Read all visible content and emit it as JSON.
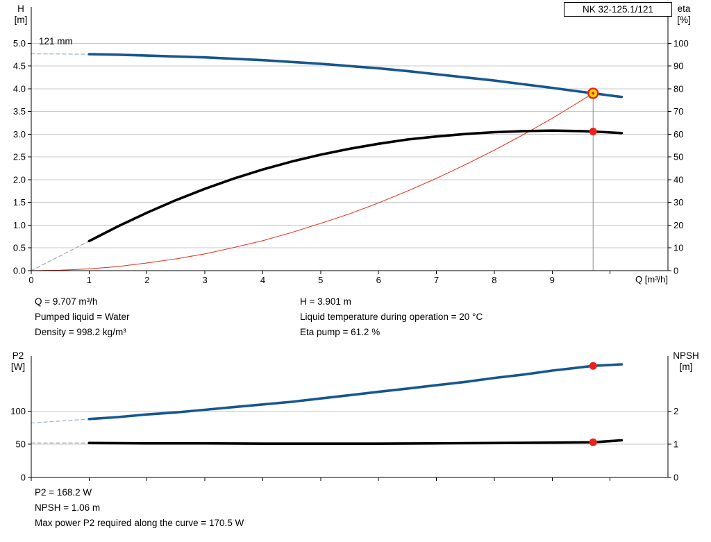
{
  "chart_data": [
    {
      "type": "line",
      "title": "NK 32-125.1/121",
      "annotations": [
        {
          "text": "121 mm"
        }
      ],
      "x": {
        "label": "Q [m³/h]",
        "min": 0,
        "max": 11,
        "ticks": [
          {
            "v": 0,
            "l": "0"
          },
          {
            "v": 1,
            "l": "1"
          },
          {
            "v": 2,
            "l": "2"
          },
          {
            "v": 3,
            "l": "3"
          },
          {
            "v": 4,
            "l": "4"
          },
          {
            "v": 5,
            "l": "5"
          },
          {
            "v": 6,
            "l": "6"
          },
          {
            "v": 7,
            "l": "7"
          },
          {
            "v": 8,
            "l": "8"
          },
          {
            "v": 9,
            "l": "9"
          },
          {
            "v": 10,
            "l": ""
          }
        ]
      },
      "left": {
        "label": "H [m]",
        "label_lines": [
          "H",
          "[m]"
        ],
        "min": 0,
        "max": 5.8,
        "ticks": [
          {
            "v": 0,
            "l": "0.0"
          },
          {
            "v": 0.5,
            "l": "0.5"
          },
          {
            "v": 1,
            "l": "1.0"
          },
          {
            "v": 1.5,
            "l": "1.5"
          },
          {
            "v": 2,
            "l": "2.0"
          },
          {
            "v": 2.5,
            "l": "2.5"
          },
          {
            "v": 3,
            "l": "3.0"
          },
          {
            "v": 3.5,
            "l": "3.5"
          },
          {
            "v": 4,
            "l": "4.0"
          },
          {
            "v": 4.5,
            "l": "4.5"
          },
          {
            "v": 5,
            "l": "5.0"
          }
        ]
      },
      "right": {
        "label": "eta [%]",
        "label_lines": [
          "eta",
          "[%]"
        ],
        "min": 0,
        "max": 116,
        "ticks": [
          {
            "v": 0,
            "l": "0"
          },
          {
            "v": 10,
            "l": "10"
          },
          {
            "v": 20,
            "l": "20"
          },
          {
            "v": 30,
            "l": "30"
          },
          {
            "v": 40,
            "l": "40"
          },
          {
            "v": 50,
            "l": "50"
          },
          {
            "v": 60,
            "l": "60"
          },
          {
            "v": 70,
            "l": "70"
          },
          {
            "v": 80,
            "l": "80"
          },
          {
            "v": 90,
            "l": "90"
          },
          {
            "v": 100,
            "l": "100"
          }
        ]
      },
      "series": [
        {
          "name": "head-curve-extrapolated",
          "axis": "left",
          "color": "#9fb4cc",
          "width": 1.3,
          "dash": "5,4",
          "points": [
            [
              0,
              4.77
            ],
            [
              1,
              4.76
            ]
          ]
        },
        {
          "name": "eta-curve-extrapolated",
          "axis": "right",
          "color": "#aaaaaa",
          "width": 1.3,
          "dash": "5,4",
          "points": [
            [
              0,
              0
            ],
            [
              1,
              13
            ]
          ]
        },
        {
          "name": "system-curve",
          "axis": "left",
          "color": "#e8392c",
          "width": 1.1,
          "dash": null,
          "points": [
            [
              0,
              0
            ],
            [
              0.5,
              0.01
            ],
            [
              1,
              0.04
            ],
            [
              1.5,
              0.09
            ],
            [
              2,
              0.17
            ],
            [
              2.5,
              0.26
            ],
            [
              3,
              0.37
            ],
            [
              3.5,
              0.51
            ],
            [
              4,
              0.66
            ],
            [
              4.5,
              0.84
            ],
            [
              5,
              1.04
            ],
            [
              5.5,
              1.25
            ],
            [
              6,
              1.49
            ],
            [
              6.5,
              1.75
            ],
            [
              7,
              2.03
            ],
            [
              7.5,
              2.33
            ],
            [
              8,
              2.65
            ],
            [
              8.5,
              2.99
            ],
            [
              9,
              3.35
            ],
            [
              9.35,
              3.62
            ],
            [
              9.707,
              3.901
            ]
          ]
        },
        {
          "name": "head-curve",
          "axis": "left",
          "color": "#17568f",
          "width": 3.6,
          "dash": null,
          "points": [
            [
              1,
              4.76
            ],
            [
              1.5,
              4.75
            ],
            [
              2,
              4.73
            ],
            [
              2.5,
              4.71
            ],
            [
              3,
              4.69
            ],
            [
              3.5,
              4.66
            ],
            [
              4,
              4.63
            ],
            [
              4.5,
              4.59
            ],
            [
              5,
              4.55
            ],
            [
              5.5,
              4.5
            ],
            [
              6,
              4.45
            ],
            [
              6.5,
              4.39
            ],
            [
              7,
              4.32
            ],
            [
              7.5,
              4.25
            ],
            [
              8,
              4.18
            ],
            [
              8.5,
              4.1
            ],
            [
              9,
              4.02
            ],
            [
              9.35,
              3.96
            ],
            [
              9.707,
              3.901
            ],
            [
              10.2,
              3.82
            ]
          ]
        },
        {
          "name": "eta-curve",
          "axis": "right",
          "color": "#000000",
          "width": 3.6,
          "dash": null,
          "points": [
            [
              1,
              13
            ],
            [
              1.5,
              19.5
            ],
            [
              2,
              25.5
            ],
            [
              2.5,
              31
            ],
            [
              3,
              36
            ],
            [
              3.5,
              40.5
            ],
            [
              4,
              44.5
            ],
            [
              4.5,
              48
            ],
            [
              5,
              51
            ],
            [
              5.5,
              53.6
            ],
            [
              6,
              55.8
            ],
            [
              6.5,
              57.7
            ],
            [
              7,
              59
            ],
            [
              7.5,
              60.1
            ],
            [
              8,
              60.9
            ],
            [
              8.5,
              61.4
            ],
            [
              9,
              61.6
            ],
            [
              9.5,
              61.4
            ],
            [
              9.707,
              61.2
            ],
            [
              10.2,
              60.5
            ]
          ]
        }
      ],
      "vlines": [
        {
          "q": 9.707,
          "to": 3.901,
          "axis": "left",
          "color": "#8a8a8a",
          "width": 1
        }
      ],
      "markers": [
        {
          "name": "duty-point",
          "q": 9.707,
          "v": 3.901,
          "axis": "left",
          "r": 7,
          "fill": "#ffd400",
          "stroke": "#e8231a",
          "stroke_width": 2.4
        },
        {
          "name": "duty-point-center",
          "q": 9.707,
          "v": 3.901,
          "axis": "left",
          "r": 2,
          "fill": "#e8231a"
        },
        {
          "name": "eta-duty-point",
          "q": 9.707,
          "v": 61.2,
          "axis": "right",
          "r": 5.5,
          "fill": "#e8231a"
        }
      ]
    },
    {
      "type": "line",
      "title": "",
      "x": {
        "label": "",
        "min": 0,
        "max": 11,
        "ticks": [
          {
            "v": 0,
            "l": ""
          },
          {
            "v": 1,
            "l": ""
          },
          {
            "v": 2,
            "l": ""
          },
          {
            "v": 3,
            "l": ""
          },
          {
            "v": 4,
            "l": ""
          },
          {
            "v": 5,
            "l": ""
          },
          {
            "v": 6,
            "l": ""
          },
          {
            "v": 7,
            "l": ""
          },
          {
            "v": 8,
            "l": ""
          },
          {
            "v": 9,
            "l": ""
          },
          {
            "v": 10,
            "l": ""
          }
        ]
      },
      "left": {
        "label": "P2 [W]",
        "label_lines": [
          "P2",
          "[W]"
        ],
        "min": 0,
        "max": 183,
        "ticks": [
          {
            "v": 0,
            "l": "0"
          },
          {
            "v": 50,
            "l": "50"
          },
          {
            "v": 100,
            "l": "100"
          }
        ]
      },
      "right": {
        "label": "NPSH [m]",
        "label_lines": [
          "NPSH",
          "[m]"
        ],
        "min": 0,
        "max": 3.66,
        "ticks": [
          {
            "v": 0,
            "l": "0"
          },
          {
            "v": 1,
            "l": "1"
          },
          {
            "v": 2,
            "l": "2"
          }
        ]
      },
      "series": [
        {
          "name": "p2-curve-extrapolated",
          "axis": "left",
          "color": "#9fb4cc",
          "width": 1.3,
          "dash": "5,4",
          "points": [
            [
              0,
              82
            ],
            [
              1,
              88
            ]
          ]
        },
        {
          "name": "npsh-curve-extrapolated",
          "axis": "right",
          "color": "#aaaaaa",
          "width": 1.3,
          "dash": "5,4",
          "points": [
            [
              0,
              1.04
            ],
            [
              1,
              1.04
            ]
          ]
        },
        {
          "name": "p2-curve",
          "axis": "left",
          "color": "#17568f",
          "width": 3.6,
          "dash": null,
          "points": [
            [
              1,
              88
            ],
            [
              1.5,
              91
            ],
            [
              2,
              95
            ],
            [
              2.5,
              98
            ],
            [
              3,
              102
            ],
            [
              3.5,
              106
            ],
            [
              4,
              110
            ],
            [
              4.5,
              114
            ],
            [
              5,
              119
            ],
            [
              5.5,
              124
            ],
            [
              6,
              129
            ],
            [
              6.5,
              134
            ],
            [
              7,
              139
            ],
            [
              7.5,
              144
            ],
            [
              8,
              150
            ],
            [
              8.5,
              155
            ],
            [
              9,
              161
            ],
            [
              9.35,
              164.5
            ],
            [
              9.707,
              168.2
            ],
            [
              10.2,
              170.5
            ]
          ]
        },
        {
          "name": "npsh-curve",
          "axis": "right",
          "color": "#000000",
          "width": 3.6,
          "dash": null,
          "points": [
            [
              1,
              1.04
            ],
            [
              2,
              1.03
            ],
            [
              3,
              1.03
            ],
            [
              4,
              1.02
            ],
            [
              5,
              1.02
            ],
            [
              6,
              1.02
            ],
            [
              7,
              1.03
            ],
            [
              8,
              1.04
            ],
            [
              9,
              1.05
            ],
            [
              9.707,
              1.06
            ],
            [
              10.2,
              1.12
            ]
          ]
        }
      ],
      "vlines": [],
      "markers": [
        {
          "name": "p2-duty-point",
          "q": 9.707,
          "v": 168.2,
          "axis": "left",
          "r": 5.5,
          "fill": "#e8231a"
        },
        {
          "name": "npsh-duty-point",
          "q": 9.707,
          "v": 1.06,
          "axis": "right",
          "r": 5.5,
          "fill": "#e8231a"
        }
      ]
    }
  ],
  "duty_results": {
    "left": [
      "Q = 9.707 m³/h",
      "Pumped liquid = Water",
      "Density = 998.2 kg/m³"
    ],
    "right": [
      "H = 3.901 m",
      "Liquid temperature during operation = 20 °C",
      "Eta pump = 61.2 %"
    ]
  },
  "power_results": [
    "P2 = 168.2 W",
    "NPSH = 1.06 m",
    "Max power P2 required along the curve = 170.5 W"
  ],
  "colors": {
    "curve_blue": "#17568f",
    "curve_black": "#000000",
    "system_curve_red": "#e8392c",
    "duty_fill_yellow": "#ffd400",
    "duty_stroke_red": "#e8231a",
    "grid_gray": "#c8c8c8"
  }
}
